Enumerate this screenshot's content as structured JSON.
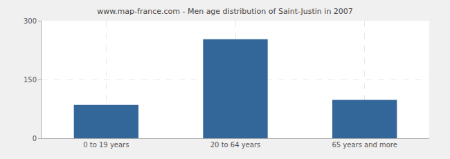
{
  "chart_data": {
    "type": "bar",
    "title": "www.map-france.com - Men age distribution of Saint-Justin in 2007",
    "categories": [
      "0 to 19 years",
      "20 to 64 years",
      "65 years and more"
    ],
    "values": [
      85,
      253,
      98
    ],
    "color": "#336699",
    "ylim": [
      0,
      300
    ],
    "yticks": [
      0,
      150,
      300
    ],
    "grid": true
  }
}
